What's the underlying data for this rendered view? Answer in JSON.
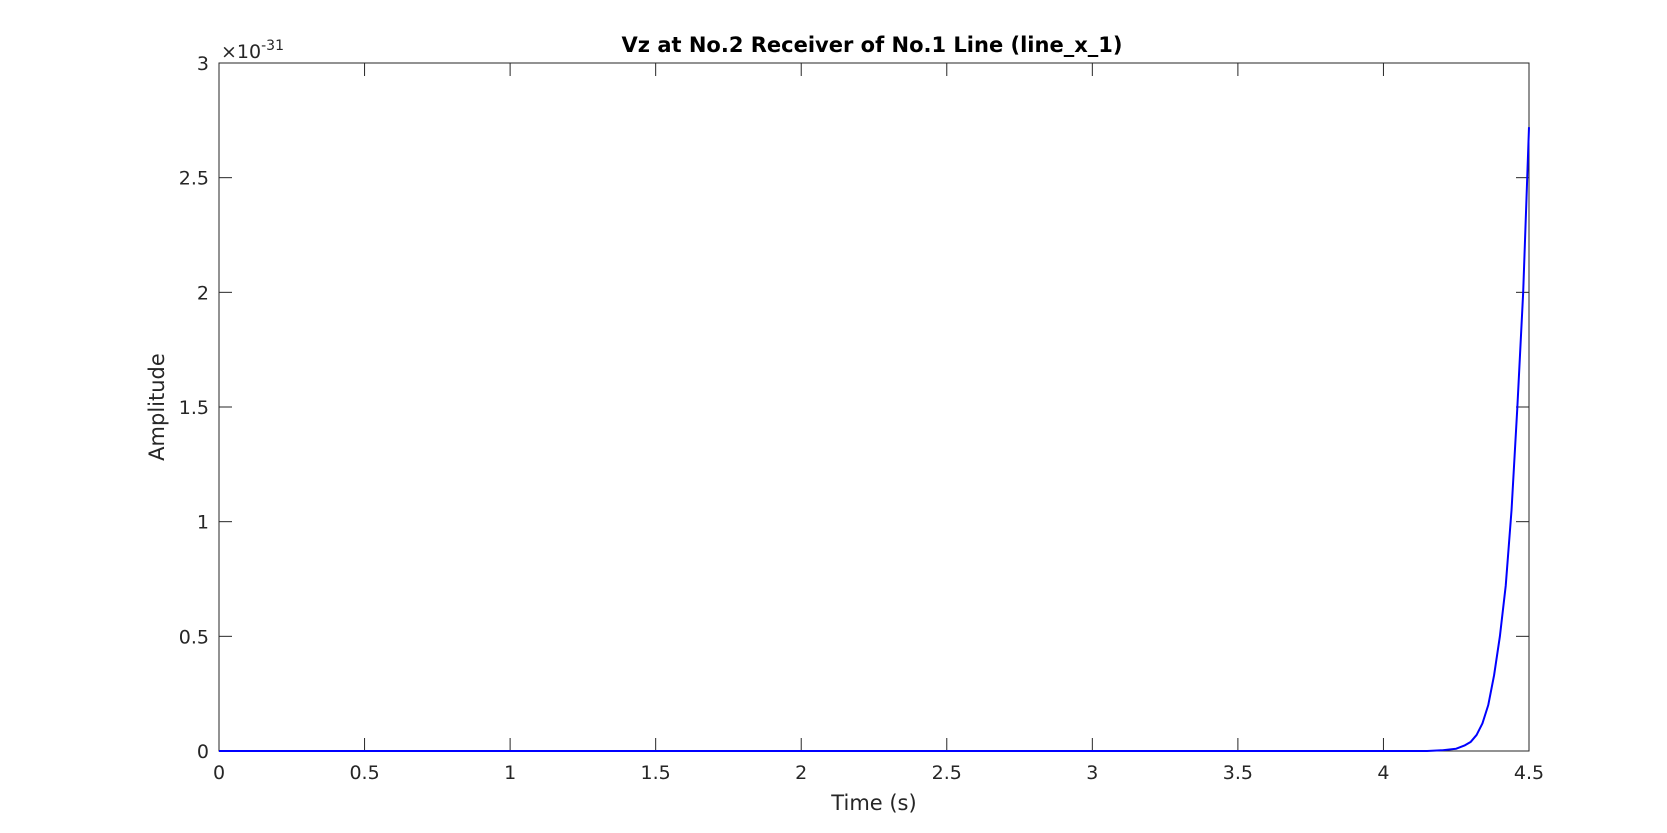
{
  "chart_data": {
    "type": "line",
    "title": "Vz at No.2 Receiver of No.1 Line (line_x_1)",
    "xlabel": "Time (s)",
    "ylabel": "Amplitude",
    "xlim": [
      0,
      4.5
    ],
    "ylim": [
      0,
      3
    ],
    "y_exponent_prefix": "×10",
    "y_exponent_power": "-31",
    "y_multiplier": 1e-31,
    "x_ticks": [
      "0",
      "0.5",
      "1",
      "1.5",
      "2",
      "2.5",
      "3",
      "3.5",
      "4",
      "4.5"
    ],
    "y_ticks": [
      "0",
      "0.5",
      "1",
      "1.5",
      "2",
      "2.5",
      "3"
    ],
    "grid": false,
    "series": [
      {
        "color": "#0000ff",
        "x": [
          0,
          0.5,
          1.0,
          1.5,
          2.0,
          2.5,
          3.0,
          3.5,
          4.0,
          4.15,
          4.2,
          4.25,
          4.28,
          4.3,
          4.32,
          4.34,
          4.36,
          4.38,
          4.4,
          4.42,
          4.44,
          4.46,
          4.48,
          4.5
        ],
        "y": [
          0,
          0,
          0,
          0,
          0,
          0,
          0,
          0,
          0,
          0.0,
          0.003,
          0.01,
          0.025,
          0.04,
          0.07,
          0.12,
          0.2,
          0.33,
          0.5,
          0.72,
          1.05,
          1.5,
          2.0,
          2.72
        ]
      }
    ]
  }
}
